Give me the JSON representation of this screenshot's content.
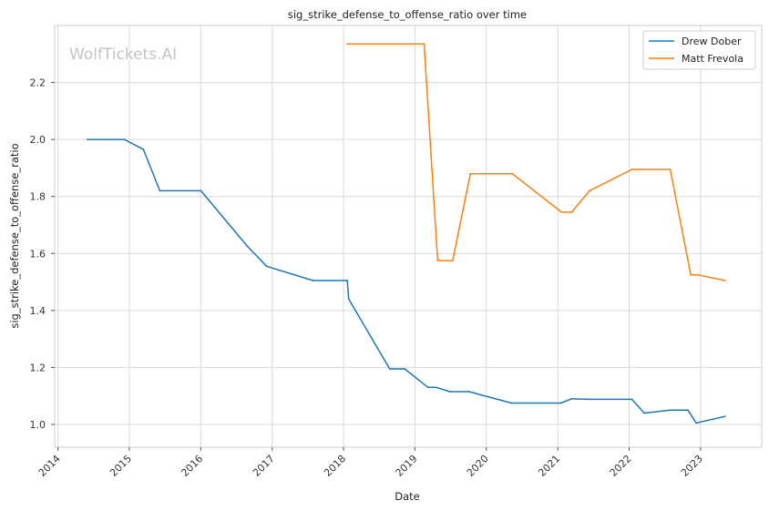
{
  "chart_data": {
    "type": "line",
    "title": "sig_strike_defense_to_offense_ratio over time",
    "xlabel": "Date",
    "ylabel": "sig_strike_defense_to_offense_ratio",
    "watermark": "WolfTickets.AI",
    "x_ticks": [
      "2014",
      "2015",
      "2016",
      "2017",
      "2018",
      "2019",
      "2020",
      "2021",
      "2022",
      "2023"
    ],
    "y_ticks": [
      "1.0",
      "1.2",
      "1.4",
      "1.6",
      "1.8",
      "2.0",
      "2.2"
    ],
    "xlim": [
      "2013-12-15",
      "2023-11-10"
    ],
    "ylim": [
      0.92,
      2.4
    ],
    "grid": true,
    "legend_position": "top-right",
    "series": [
      {
        "name": "Drew Dober",
        "color": "#1f77b4",
        "points": [
          [
            "2014-05-31",
            2.0
          ],
          [
            "2014-12-06",
            2.0
          ],
          [
            "2015-03-14",
            1.965
          ],
          [
            "2015-06-06",
            1.82
          ],
          [
            "2016-01-02",
            1.82
          ],
          [
            "2016-08-27",
            1.625
          ],
          [
            "2016-12-03",
            1.555
          ],
          [
            "2017-07-29",
            1.505
          ],
          [
            "2018-01-20",
            1.505
          ],
          [
            "2018-01-27",
            1.44
          ],
          [
            "2018-08-25",
            1.195
          ],
          [
            "2018-11-10",
            1.195
          ],
          [
            "2019-03-09",
            1.13
          ],
          [
            "2019-04-20",
            1.13
          ],
          [
            "2019-06-29",
            1.115
          ],
          [
            "2019-10-05",
            1.115
          ],
          [
            "2020-05-09",
            1.075
          ],
          [
            "2021-01-16",
            1.075
          ],
          [
            "2021-03-13",
            1.09
          ],
          [
            "2021-06-05",
            1.088
          ],
          [
            "2022-01-15",
            1.088
          ],
          [
            "2022-03-19",
            1.04
          ],
          [
            "2022-07-30",
            1.05
          ],
          [
            "2022-10-29",
            1.05
          ],
          [
            "2022-12-10",
            1.005
          ],
          [
            "2023-05-06",
            1.028
          ]
        ]
      },
      {
        "name": "Matt Frevola",
        "color": "#ff7f0e",
        "points": [
          [
            "2018-01-20",
            2.335
          ],
          [
            "2019-02-17",
            2.335
          ],
          [
            "2019-04-27",
            1.575
          ],
          [
            "2019-07-13",
            1.575
          ],
          [
            "2019-10-12",
            1.88
          ],
          [
            "2020-05-13",
            1.88
          ],
          [
            "2021-01-20",
            1.745
          ],
          [
            "2021-03-13",
            1.745
          ],
          [
            "2021-06-12",
            1.82
          ],
          [
            "2022-01-15",
            1.895
          ],
          [
            "2022-07-30",
            1.895
          ],
          [
            "2022-11-12",
            1.525
          ],
          [
            "2022-12-17",
            1.525
          ],
          [
            "2023-05-06",
            1.505
          ]
        ]
      }
    ]
  }
}
